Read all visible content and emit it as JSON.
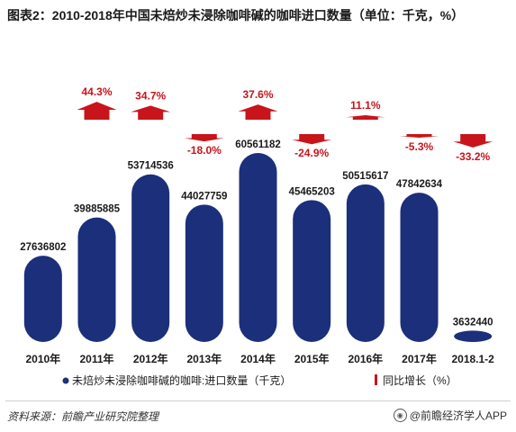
{
  "title": "图表2：2010-2018年中国未焙炒未浸除咖啡碱的咖啡进口数量（单位：千克，%）",
  "colors": {
    "bar": "#1b2f7a",
    "arrow": "#c8141b",
    "growth_text": "#c8141b",
    "value_text": "#1a1a1a"
  },
  "chart_data": {
    "type": "bar",
    "categories": [
      "2010年",
      "2011年",
      "2012年",
      "2013年",
      "2014年",
      "2015年",
      "2016年",
      "2017年",
      "2018.1-2"
    ],
    "series": [
      {
        "name": "未焙炒未浸除咖啡碱的咖啡:进口数量（千克）",
        "values": [
          27636802,
          39885885,
          53714536,
          44027759,
          60561182,
          45465203,
          50515617,
          47842634,
          3632440
        ],
        "labels": [
          "27636802",
          "39885885",
          "53714536",
          "44027759",
          "60561182",
          "45465203",
          "50515617",
          "47842634",
          "3632440"
        ]
      },
      {
        "name": "同比增长（%）",
        "values": [
          null,
          44.3,
          34.7,
          -18.0,
          37.6,
          -24.9,
          11.1,
          -5.3,
          -33.2
        ],
        "labels": [
          "",
          "44.3%",
          "34.7%",
          "-18.0%",
          "37.6%",
          "-24.9%",
          "11.1%",
          "-5.3%",
          "-33.2%"
        ]
      }
    ],
    "legend": [
      "未焙炒未浸除咖啡碱的咖啡:进口数量（千克）",
      "同比增长（%）"
    ],
    "legend_position": "bottom",
    "ylim": [
      0,
      62000000
    ],
    "growth_range": [
      -50,
      50
    ],
    "grid": false
  },
  "footer": {
    "source": "资料来源：前瞻产业研究院整理",
    "app": "@前瞻经济学人APP"
  }
}
